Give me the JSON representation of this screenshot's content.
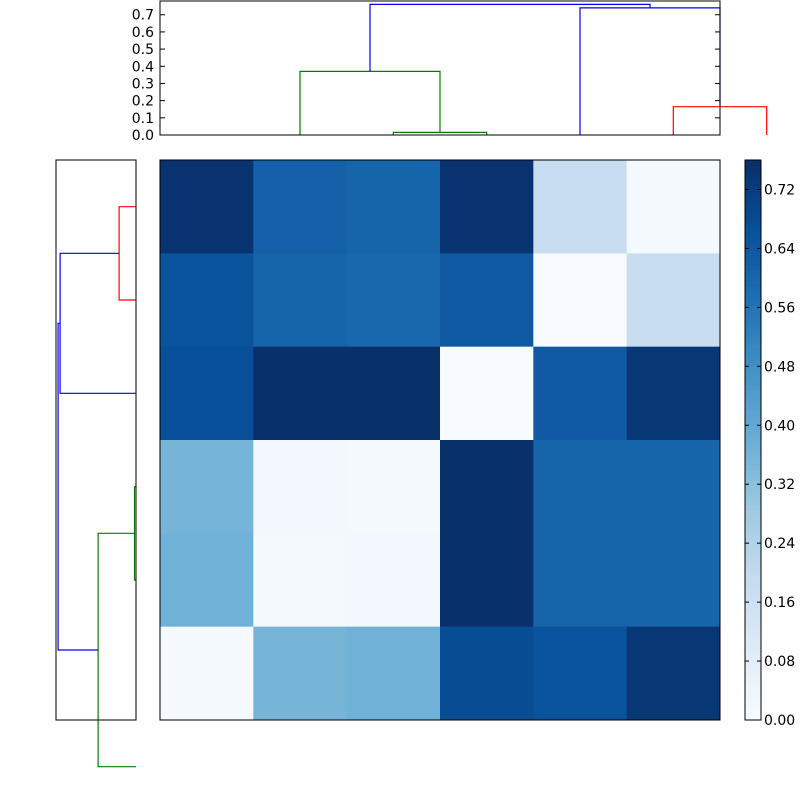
{
  "chart_data": [
    {
      "type": "heatmap",
      "title": "",
      "xlabel": "",
      "ylabel": "",
      "rows": 6,
      "cols": 6,
      "values": [
        [
          0.75,
          0.62,
          0.61,
          0.75,
          0.18,
          0.01
        ],
        [
          0.66,
          0.61,
          0.6,
          0.64,
          0.0,
          0.18
        ],
        [
          0.67,
          0.76,
          0.76,
          0.0,
          0.64,
          0.74
        ],
        [
          0.36,
          0.02,
          0.01,
          0.76,
          0.61,
          0.61
        ],
        [
          0.37,
          0.01,
          0.02,
          0.76,
          0.61,
          0.61
        ],
        [
          0.01,
          0.36,
          0.37,
          0.68,
          0.66,
          0.74
        ]
      ],
      "colormap": "Blues",
      "colorbar": {
        "range": [
          0.0,
          0.76
        ],
        "ticks": [
          "0.00",
          "0.08",
          "0.16",
          "0.24",
          "0.32",
          "0.40",
          "0.48",
          "0.56",
          "0.64",
          "0.72"
        ],
        "tick_values": [
          0.0,
          0.08,
          0.16,
          0.24,
          0.32,
          0.4,
          0.48,
          0.56,
          0.64,
          0.72
        ]
      }
    },
    {
      "type": "dendrogram",
      "orientation": "top",
      "ylim": [
        0.0,
        0.78
      ],
      "yticks": [
        "0.0",
        "0.1",
        "0.2",
        "0.3",
        "0.4",
        "0.5",
        "0.6",
        "0.7"
      ],
      "ytick_values": [
        0.0,
        0.1,
        0.2,
        0.3,
        0.4,
        0.5,
        0.6,
        0.7
      ],
      "leaf_count": 6,
      "links": [
        {
          "x": [
            2.5,
            2.5,
            3.5,
            3.5
          ],
          "y": [
            0.0,
            0.015,
            0.015,
            0.0
          ],
          "color": "#008000"
        },
        {
          "x": [
            1.5,
            1.5,
            3.0,
            3.0
          ],
          "y": [
            0.0,
            0.37,
            0.37,
            0.015
          ],
          "color": "#008000"
        },
        {
          "x": [
            5.5,
            5.5,
            6.5,
            6.5
          ],
          "y": [
            0.0,
            0.165,
            0.165,
            0.0
          ],
          "color": "#ff0000"
        },
        {
          "x": [
            4.5,
            4.5,
            6.0,
            6.0
          ],
          "y": [
            0.0,
            0.74,
            0.74,
            0.165
          ],
          "color": "#0000ff"
        },
        {
          "x": [
            2.25,
            2.25,
            5.25,
            5.25
          ],
          "y": [
            0.37,
            0.76,
            0.76,
            0.74
          ],
          "color": "#0000ff"
        }
      ]
    },
    {
      "type": "dendrogram",
      "orientation": "left",
      "xlim": [
        0.78,
        0.0
      ],
      "leaf_count": 6,
      "links": [
        {
          "x": [
            0.0,
            0.015,
            0.015,
            0.0
          ],
          "y": [
            3.5,
            3.5,
            4.5,
            4.5
          ],
          "color": "#008000"
        },
        {
          "x": [
            0.0,
            0.37,
            0.37,
            0.015
          ],
          "y": [
            6.5,
            6.5,
            4.0,
            4.0
          ],
          "color": "#008000"
        },
        {
          "x": [
            0.0,
            0.165,
            0.165,
            0.0
          ],
          "y": [
            0.5,
            0.5,
            1.5,
            1.5
          ],
          "color": "#ff0000"
        },
        {
          "x": [
            0.0,
            0.74,
            0.74,
            0.165
          ],
          "y": [
            2.5,
            2.5,
            1.0,
            1.0
          ],
          "color": "#0000ff"
        },
        {
          "x": [
            0.37,
            0.76,
            0.76,
            0.74
          ],
          "y": [
            5.25,
            5.25,
            1.75,
            1.75
          ],
          "color": "#0000ff"
        }
      ]
    }
  ]
}
